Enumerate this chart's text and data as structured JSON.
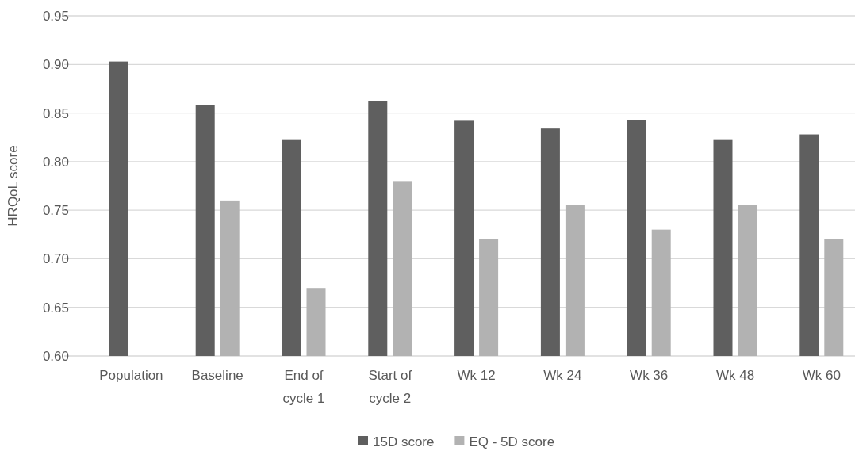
{
  "chart_data": {
    "type": "bar",
    "ylabel": "HRQoL score",
    "categories": [
      "Population",
      "Baseline",
      "End of cycle 1",
      "Start of cycle 2",
      "Wk 12",
      "Wk 24",
      "Wk 36",
      "Wk 48",
      "Wk 60"
    ],
    "series": [
      {
        "name": "15D score",
        "color": "#5f5f5f",
        "values": [
          0.903,
          0.858,
          0.823,
          0.862,
          0.842,
          0.834,
          0.843,
          0.823,
          0.828
        ]
      },
      {
        "name": "EQ - 5D score",
        "color": "#b2b2b2",
        "values": [
          null,
          0.76,
          0.67,
          0.78,
          0.72,
          0.755,
          0.73,
          0.755,
          0.72
        ]
      }
    ],
    "ylim": [
      0.6,
      0.95
    ],
    "yticks": [
      {
        "value": 0.6,
        "label": "0.60"
      },
      {
        "value": 0.65,
        "label": "0.65"
      },
      {
        "value": 0.7,
        "label": "0.70"
      },
      {
        "value": 0.75,
        "label": "0.75"
      },
      {
        "value": 0.8,
        "label": "0.80"
      },
      {
        "value": 0.85,
        "label": "0.85"
      },
      {
        "value": 0.9,
        "label": "0.90"
      },
      {
        "value": 0.95,
        "label": "0.95"
      }
    ],
    "grid": "y",
    "legend": "bottom"
  }
}
